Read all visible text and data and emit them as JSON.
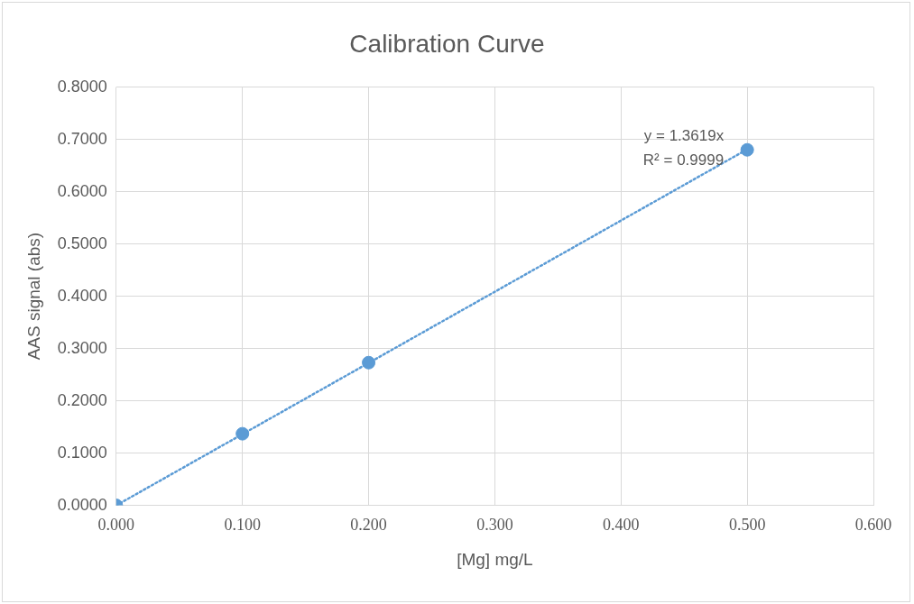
{
  "chart_data": {
    "type": "scatter",
    "title": "Calibration Curve",
    "xlabel": "[Mg] mg/L",
    "ylabel": "AAS signal (abs)",
    "xlim": [
      0,
      0.6
    ],
    "ylim": [
      0,
      0.8
    ],
    "xticks": [
      {
        "value": 0,
        "label": "0.000"
      },
      {
        "value": 0.1,
        "label": "0.100"
      },
      {
        "value": 0.2,
        "label": "0.200"
      },
      {
        "value": 0.3,
        "label": "0.300"
      },
      {
        "value": 0.4,
        "label": "0.400"
      },
      {
        "value": 0.5,
        "label": "0.500"
      },
      {
        "value": 0.6,
        "label": "0.600"
      }
    ],
    "yticks": [
      {
        "value": 0,
        "label": "0.0000"
      },
      {
        "value": 0.1,
        "label": "0.1000"
      },
      {
        "value": 0.2,
        "label": "0.2000"
      },
      {
        "value": 0.3,
        "label": "0.3000"
      },
      {
        "value": 0.4,
        "label": "0.4000"
      },
      {
        "value": 0.5,
        "label": "0.5000"
      },
      {
        "value": 0.6,
        "label": "0.6000"
      },
      {
        "value": 0.7,
        "label": "0.7000"
      },
      {
        "value": 0.8,
        "label": "0.8000"
      }
    ],
    "grid": true,
    "legend": false,
    "series": [
      {
        "type": "scatter",
        "color": "#5b9bd5",
        "marker": "circle",
        "x": [
          0,
          0.1,
          0.2,
          0.5
        ],
        "values": [
          0,
          0.137,
          0.273,
          0.68
        ]
      },
      {
        "type": "line",
        "color": "#5b9bd5",
        "marker": "none",
        "line_style": "dotted",
        "x": [
          0,
          0.5
        ],
        "values": [
          0,
          0.681
        ]
      }
    ],
    "annotations": [
      "y = 1.3619x",
      "R² = 0.9999"
    ]
  }
}
